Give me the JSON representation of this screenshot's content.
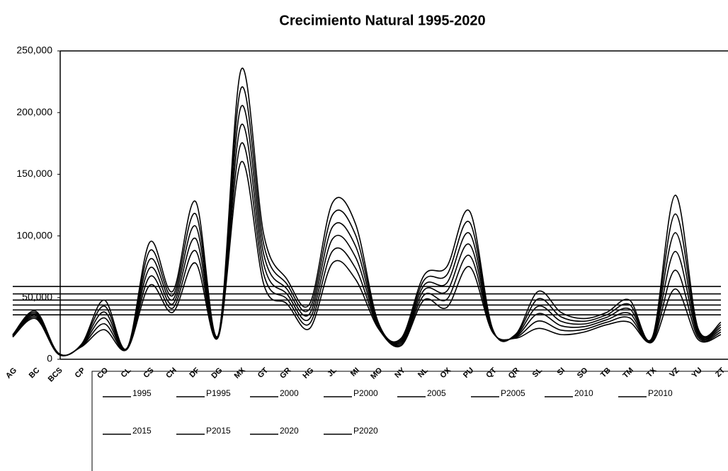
{
  "chart_data": {
    "type": "line",
    "title": "Crecimiento Natural 1995-2020",
    "categories": [
      "AG",
      "BC",
      "BCS",
      "CP",
      "CO",
      "CL",
      "CS",
      "CH",
      "DF",
      "DG",
      "MX",
      "GT",
      "GR",
      "HG",
      "JL",
      "MI",
      "MO",
      "NY",
      "NL",
      "OX",
      "PU",
      "QT",
      "QR",
      "SL",
      "SI",
      "SO",
      "TB",
      "TM",
      "TX",
      "VZ",
      "YU",
      "ZT"
    ],
    "ylim": [
      0,
      250000
    ],
    "yticks": [
      0,
      {
        "value": 50000,
        "label": "50,000"
      },
      {
        "value": 100000,
        "label": "100,000"
      },
      {
        "value": 150000,
        "label": "150,000"
      },
      {
        "value": 200000,
        "label": "200,000"
      },
      {
        "value": 250000,
        "label": "250,000"
      }
    ],
    "legend": "bottom",
    "series": [
      {
        "name": "1995",
        "color": "#000000",
        "values": [
          18000,
          33000,
          4000,
          10000,
          24000,
          8000,
          60000,
          38000,
          78000,
          18000,
          160000,
          60000,
          45000,
          25000,
          78000,
          65000,
          25000,
          11000,
          48000,
          42000,
          75000,
          22000,
          17000,
          25000,
          20000,
          22000,
          28000,
          30000,
          14000,
          57000,
          16000,
          20000
        ]
      },
      {
        "name": "P1995",
        "color": "#000000",
        "values": [
          36000,
          36000,
          36000,
          36000,
          36000,
          36000,
          36000,
          36000,
          36000,
          36000,
          36000,
          36000,
          36000,
          36000,
          36000,
          36000,
          36000,
          36000,
          36000,
          36000,
          36000,
          36000,
          36000,
          36000,
          36000,
          36000,
          36000,
          36000,
          36000,
          36000,
          36000,
          36000
        ]
      },
      {
        "name": "2000",
        "color": "#000000",
        "values": [
          18400,
          34200,
          4200,
          10400,
          28800,
          8200,
          67000,
          41400,
          88000,
          18400,
          175000,
          68000,
          49000,
          29000,
          87800,
          74000,
          26000,
          12200,
          52000,
          48600,
          84000,
          22600,
          17600,
          31000,
          23600,
          24200,
          30000,
          33600,
          14800,
          72200,
          17800,
          22000
        ]
      },
      {
        "name": "P2000",
        "color": "#000000",
        "values": [
          40000,
          40000,
          40000,
          40000,
          40000,
          40000,
          40000,
          40000,
          40000,
          40000,
          40000,
          40000,
          40000,
          40000,
          40000,
          40000,
          40000,
          40000,
          40000,
          40000,
          40000,
          40000,
          40000,
          40000,
          40000,
          40000,
          40000,
          40000,
          40000,
          40000,
          40000,
          40000
        ]
      },
      {
        "name": "2005",
        "color": "#000000",
        "values": [
          18800,
          35400,
          4400,
          10800,
          33600,
          8400,
          74000,
          44800,
          98000,
          18800,
          190000,
          76000,
          53000,
          33000,
          97600,
          83000,
          27000,
          13400,
          56000,
          55200,
          93000,
          23200,
          18200,
          37000,
          27200,
          26400,
          32000,
          37200,
          15600,
          87400,
          19600,
          24000
        ]
      },
      {
        "name": "P2005",
        "color": "#000000",
        "values": [
          44000,
          44000,
          44000,
          44000,
          44000,
          44000,
          44000,
          44000,
          44000,
          44000,
          44000,
          44000,
          44000,
          44000,
          44000,
          44000,
          44000,
          44000,
          44000,
          44000,
          44000,
          44000,
          44000,
          44000,
          44000,
          44000,
          44000,
          44000,
          44000,
          44000,
          44000,
          44000
        ]
      },
      {
        "name": "2010",
        "color": "#000000",
        "values": [
          19200,
          36600,
          4600,
          11200,
          38400,
          8600,
          81000,
          48200,
          108000,
          19200,
          205000,
          84000,
          57000,
          37000,
          107400,
          92000,
          28000,
          14600,
          60000,
          61800,
          102000,
          23800,
          18800,
          43000,
          30800,
          28600,
          34000,
          40800,
          16400,
          102600,
          21400,
          26000
        ]
      },
      {
        "name": "P2010",
        "color": "#000000",
        "values": [
          48000,
          48000,
          48000,
          48000,
          48000,
          48000,
          48000,
          48000,
          48000,
          48000,
          48000,
          48000,
          48000,
          48000,
          48000,
          48000,
          48000,
          48000,
          48000,
          48000,
          48000,
          48000,
          48000,
          48000,
          48000,
          48000,
          48000,
          48000,
          48000,
          48000,
          48000,
          48000
        ]
      },
      {
        "name": "2015",
        "color": "#000000",
        "values": [
          19600,
          37800,
          4800,
          11600,
          43200,
          8800,
          88000,
          51600,
          118000,
          19600,
          220000,
          92000,
          61000,
          41000,
          117200,
          101000,
          29000,
          15800,
          64000,
          68400,
          111000,
          24400,
          19400,
          49000,
          34400,
          30800,
          36000,
          44400,
          17200,
          117800,
          23200,
          28000
        ]
      },
      {
        "name": "P2015",
        "color": "#000000",
        "values": [
          53000,
          53000,
          53000,
          53000,
          53000,
          53000,
          53000,
          53000,
          53000,
          53000,
          53000,
          53000,
          53000,
          53000,
          53000,
          53000,
          53000,
          53000,
          53000,
          53000,
          53000,
          53000,
          53000,
          53000,
          53000,
          53000,
          53000,
          53000,
          53000,
          53000,
          53000,
          53000
        ]
      },
      {
        "name": "2020",
        "color": "#000000",
        "values": [
          20000,
          39000,
          5000,
          12000,
          48000,
          9000,
          95000,
          55000,
          128000,
          20000,
          235000,
          100000,
          65000,
          45000,
          127000,
          110000,
          30000,
          17000,
          68000,
          75000,
          120000,
          25000,
          20000,
          55000,
          38000,
          33000,
          38000,
          48000,
          18000,
          133000,
          25000,
          30000
        ]
      },
      {
        "name": "P2020",
        "color": "#000000",
        "values": [
          59000,
          59000,
          59000,
          59000,
          59000,
          59000,
          59000,
          59000,
          59000,
          59000,
          59000,
          59000,
          59000,
          59000,
          59000,
          59000,
          59000,
          59000,
          59000,
          59000,
          59000,
          59000,
          59000,
          59000,
          59000,
          59000,
          59000,
          59000,
          59000,
          59000,
          59000,
          59000
        ]
      }
    ]
  }
}
